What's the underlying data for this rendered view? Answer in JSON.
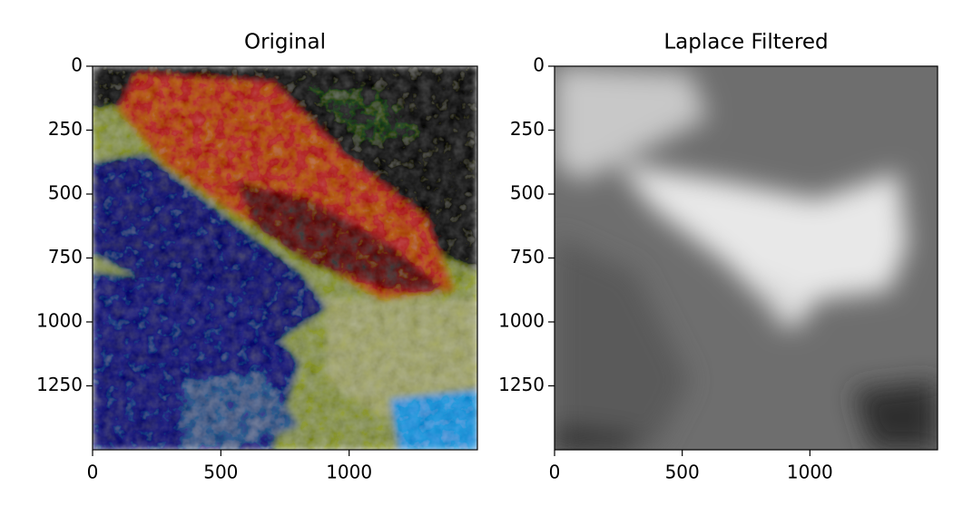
{
  "chart_data": [
    {
      "type": "image",
      "title": "Original",
      "xlim": [
        0,
        1500
      ],
      "ylim": [
        1500,
        0
      ],
      "xticks": [
        0,
        500,
        1000
      ],
      "yticks": [
        0,
        250,
        500,
        750,
        1000,
        1250
      ]
    },
    {
      "type": "image",
      "title": "Laplace Filtered",
      "xlim": [
        0,
        1500
      ],
      "ylim": [
        1500,
        0
      ],
      "xticks": [
        0,
        500,
        1000
      ],
      "yticks": [
        0,
        250,
        500,
        750,
        1000,
        1250
      ]
    }
  ]
}
